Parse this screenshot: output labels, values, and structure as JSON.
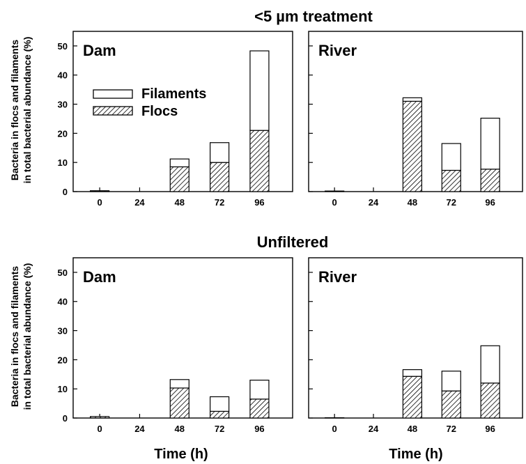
{
  "sections": [
    {
      "title": "<5 µm treatment"
    },
    {
      "title": "Unfiltered"
    }
  ],
  "ylabel_line1": "Bacteria in flocs and filaments",
  "ylabel_line2": "in total bacterial abundance (%)",
  "xlabel": "Time (h)",
  "legend": {
    "filaments": "Filaments",
    "flocs": "Flocs"
  },
  "colors": {
    "filaments": "#ffffff",
    "flocs_hatch": "#000000",
    "axis": "#000000"
  },
  "chart_data": [
    {
      "type": "bar",
      "stacked": true,
      "section": "<5 µm treatment",
      "panel": "Dam",
      "categories": [
        "0",
        "24",
        "48",
        "72",
        "96"
      ],
      "series": [
        {
          "name": "Flocs",
          "values": [
            0.3,
            0,
            8.5,
            10,
            21
          ]
        },
        {
          "name": "Filaments",
          "values": [
            0,
            0,
            2.7,
            6.8,
            27.3
          ]
        }
      ],
      "ylim": [
        0,
        55
      ],
      "yticks": [
        0,
        10,
        20,
        30,
        40,
        50
      ],
      "legend_position": "upper-left"
    },
    {
      "type": "bar",
      "stacked": true,
      "section": "<5 µm treatment",
      "panel": "River",
      "categories": [
        "0",
        "24",
        "48",
        "72",
        "96"
      ],
      "series": [
        {
          "name": "Flocs",
          "values": [
            0.2,
            0,
            31,
            7.3,
            7.7
          ]
        },
        {
          "name": "Filaments",
          "values": [
            0,
            0,
            1.2,
            9.2,
            17.5
          ]
        }
      ],
      "ylim": [
        0,
        55
      ],
      "yticks": [
        0,
        10,
        20,
        30,
        40,
        50
      ]
    },
    {
      "type": "bar",
      "stacked": true,
      "section": "Unfiltered",
      "panel": "Dam",
      "categories": [
        "0",
        "24",
        "48",
        "72",
        "96"
      ],
      "series": [
        {
          "name": "Flocs",
          "values": [
            0.5,
            0,
            10.3,
            2.3,
            6.5
          ]
        },
        {
          "name": "Filaments",
          "values": [
            0,
            0,
            2.9,
            5,
            6.5
          ]
        }
      ],
      "ylim": [
        0,
        55
      ],
      "yticks": [
        0,
        10,
        20,
        30,
        40,
        50
      ]
    },
    {
      "type": "bar",
      "stacked": true,
      "section": "Unfiltered",
      "panel": "River",
      "categories": [
        "0",
        "24",
        "48",
        "72",
        "96"
      ],
      "series": [
        {
          "name": "Flocs",
          "values": [
            0.1,
            0,
            14.3,
            9.3,
            12
          ]
        },
        {
          "name": "Filaments",
          "values": [
            0,
            0,
            2.3,
            6.8,
            12.8
          ]
        }
      ],
      "ylim": [
        0,
        55
      ],
      "yticks": [
        0,
        10,
        20,
        30,
        40,
        50
      ]
    }
  ]
}
